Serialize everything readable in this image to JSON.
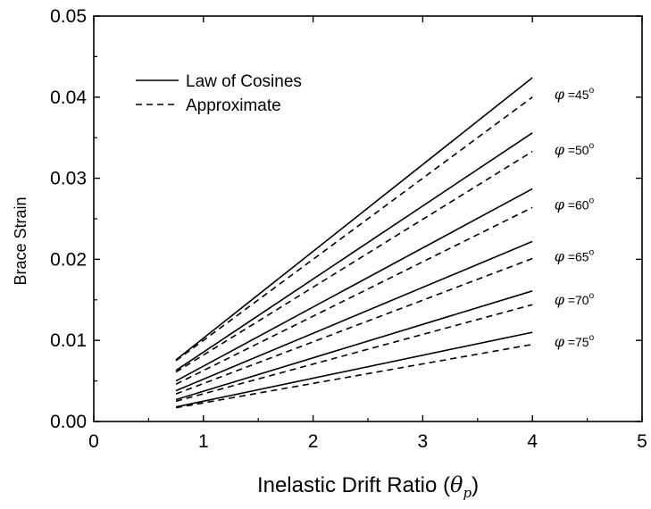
{
  "chart_data": {
    "type": "line",
    "title": "",
    "xlabel": "Inelastic Drift Ratio (",
    "xlabel_symbol": "θ",
    "xlabel_subscript": "p",
    "xlabel_close": ")",
    "ylabel": "Brace Strain",
    "xlim": [
      0,
      5
    ],
    "ylim": [
      0,
      0.05
    ],
    "xticks": [
      0,
      1,
      2,
      3,
      4,
      5
    ],
    "xtick_labels": [
      "0",
      "1",
      "2",
      "3",
      "4",
      "5"
    ],
    "yticks": [
      0,
      0.01,
      0.02,
      0.03,
      0.04,
      0.05
    ],
    "ytick_labels": [
      "0.00",
      "0.01",
      "0.02",
      "0.03",
      "0.04",
      "0.05"
    ],
    "grid": false,
    "legend_position": "top-left",
    "legend": [
      {
        "label": "Law of Cosines",
        "style": "solid"
      },
      {
        "label": "Approximate",
        "style": "dashed"
      }
    ],
    "annotations": [
      {
        "phi": "φ",
        "text": " =45",
        "deg": "o",
        "at": [
          4.2,
          0.0403
        ]
      },
      {
        "phi": "φ",
        "text": " =50",
        "deg": "o",
        "at": [
          4.2,
          0.0335
        ]
      },
      {
        "phi": "φ",
        "text": " =60",
        "deg": "o",
        "at": [
          4.2,
          0.0267
        ]
      },
      {
        "phi": "φ",
        "text": " =65",
        "deg": "o",
        "at": [
          4.2,
          0.0203
        ]
      },
      {
        "phi": "φ",
        "text": " =70",
        "deg": "o",
        "at": [
          4.2,
          0.015
        ]
      },
      {
        "phi": "φ",
        "text": " =75",
        "deg": "o",
        "at": [
          4.2,
          0.0098
        ]
      }
    ],
    "series": [
      {
        "style": "solid",
        "x": [
          0.75,
          4.0
        ],
        "y": [
          0.0076,
          0.0424
        ]
      },
      {
        "style": "dashed",
        "x": [
          0.75,
          4.0
        ],
        "y": [
          0.0075,
          0.04
        ]
      },
      {
        "style": "solid",
        "x": [
          0.75,
          4.0
        ],
        "y": [
          0.0063,
          0.0356
        ]
      },
      {
        "style": "dashed",
        "x": [
          0.75,
          4.0
        ],
        "y": [
          0.0061,
          0.0333
        ]
      },
      {
        "style": "solid",
        "x": [
          0.75,
          4.0
        ],
        "y": [
          0.005,
          0.0287
        ]
      },
      {
        "style": "dashed",
        "x": [
          0.75,
          4.0
        ],
        "y": [
          0.0046,
          0.0264
        ]
      },
      {
        "style": "solid",
        "x": [
          0.75,
          4.0
        ],
        "y": [
          0.0038,
          0.0222
        ]
      },
      {
        "style": "dashed",
        "x": [
          0.75,
          4.0
        ],
        "y": [
          0.0034,
          0.0201
        ]
      },
      {
        "style": "solid",
        "x": [
          0.75,
          4.0
        ],
        "y": [
          0.0027,
          0.0161
        ]
      },
      {
        "style": "dashed",
        "x": [
          0.75,
          4.0
        ],
        "y": [
          0.0025,
          0.0144
        ]
      },
      {
        "style": "solid",
        "x": [
          0.75,
          4.0
        ],
        "y": [
          0.0018,
          0.011
        ]
      },
      {
        "style": "dashed",
        "x": [
          0.75,
          4.0
        ],
        "y": [
          0.0017,
          0.0095
        ]
      }
    ]
  }
}
